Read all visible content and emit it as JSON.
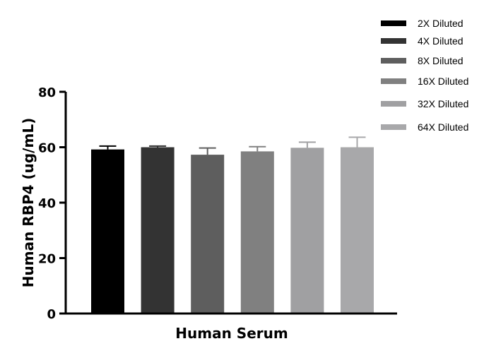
{
  "chart_data": {
    "type": "bar",
    "title": "",
    "xlabel": "Human Serum",
    "ylabel": "Human RBP4 (ug/mL)",
    "ylim": [
      0,
      80
    ],
    "yticks": [
      0,
      20,
      40,
      60,
      80
    ],
    "grid": false,
    "legend_position": "top-right",
    "series": [
      {
        "name": "2X Diluted",
        "value": 59.2,
        "error": 1.2,
        "color": "#000000"
      },
      {
        "name": "4X Diluted",
        "value": 60.0,
        "error": 0.4,
        "color": "#333333"
      },
      {
        "name": "8X Diluted",
        "value": 57.3,
        "error": 2.4,
        "color": "#5e5e5e"
      },
      {
        "name": "16X Diluted",
        "value": 58.5,
        "error": 1.7,
        "color": "#808080"
      },
      {
        "name": "32X Diluted",
        "value": 59.8,
        "error": 2.0,
        "color": "#a0a0a2"
      },
      {
        "name": "64X Diluted",
        "value": 60.0,
        "error": 3.6,
        "color": "#a8a8aa"
      }
    ]
  }
}
